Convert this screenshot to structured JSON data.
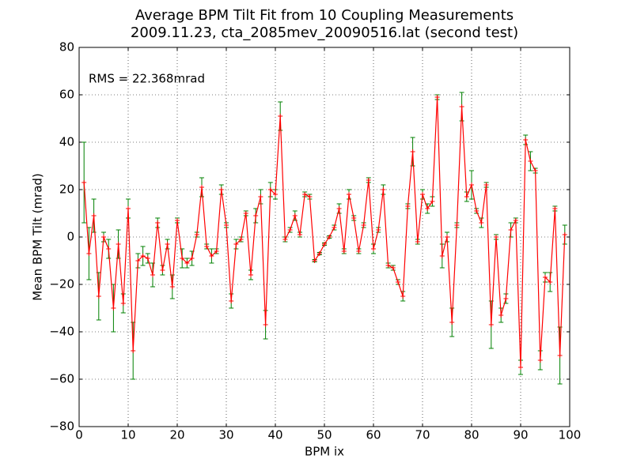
{
  "chart_data": {
    "type": "errorbar",
    "title": "Average BPM Tilt Fit from 10 Coupling Measurements",
    "subtitle": "2009.11.23, cta_2085mev_20090516.lat (second test)",
    "x_label": "BPM ix",
    "y_label": "Mean BPM Tilt (mrad)",
    "annotation": "RMS = 22.368mrad",
    "color": "#ff0000",
    "error_color": "#008000",
    "grid": true,
    "xlim": [
      0,
      100
    ],
    "ylim": [
      -80,
      80
    ],
    "xticks": [
      0,
      10,
      20,
      30,
      40,
      50,
      60,
      70,
      80,
      90,
      100
    ],
    "yticks": [
      {
        "value": -80,
        "label": "−80"
      },
      {
        "value": -60,
        "label": "−60"
      },
      {
        "value": -40,
        "label": "−40"
      },
      {
        "value": -20,
        "label": "−20"
      },
      0,
      20,
      40,
      60,
      80
    ],
    "x": [
      1,
      2,
      3,
      4,
      5,
      6,
      7,
      8,
      9,
      10,
      11,
      12,
      13,
      14,
      15,
      16,
      17,
      18,
      19,
      20,
      21,
      22,
      23,
      24,
      25,
      26,
      27,
      28,
      29,
      30,
      31,
      32,
      33,
      34,
      35,
      36,
      37,
      38,
      39,
      40,
      41,
      42,
      43,
      44,
      45,
      46,
      47,
      48,
      49,
      50,
      51,
      52,
      53,
      54,
      55,
      56,
      57,
      58,
      59,
      60,
      61,
      62,
      63,
      64,
      65,
      66,
      67,
      68,
      69,
      70,
      71,
      72,
      73,
      74,
      75,
      76,
      77,
      78,
      79,
      80,
      81,
      82,
      83,
      84,
      85,
      86,
      87,
      88,
      89,
      90,
      91,
      92,
      93,
      94,
      95,
      96,
      97,
      98,
      99
    ],
    "values": [
      23,
      -7,
      9,
      -25,
      0,
      -5,
      -30,
      -3,
      -28,
      12,
      -48,
      -10,
      -8,
      -9,
      -16,
      6,
      -14,
      -3,
      -21,
      7,
      -9,
      -11,
      -9,
      1,
      21,
      -4,
      -8,
      -6,
      20,
      5,
      -27,
      -3,
      -1,
      10,
      -16,
      9,
      17,
      -37,
      20,
      18,
      51,
      -1,
      3,
      9,
      1,
      18,
      17,
      -10,
      -7,
      -3,
      0,
      4,
      12,
      -6,
      18,
      8,
      -6,
      5,
      24,
      -5,
      3,
      20,
      -12,
      -13,
      -19,
      -25,
      13,
      36,
      -2,
      18,
      12,
      15,
      59,
      -8,
      0,
      -36,
      5,
      55,
      17,
      22,
      11,
      6,
      22,
      -37,
      0,
      -33,
      -26,
      3,
      7,
      -55,
      41,
      32,
      28,
      -52,
      -17,
      -19,
      12,
      -50,
      1
    ],
    "errors": [
      17,
      11,
      7,
      10,
      2,
      4,
      10,
      6,
      4,
      4,
      12,
      3,
      4,
      2,
      5,
      2,
      2,
      2,
      5,
      1,
      4,
      2,
      3,
      1,
      4,
      1,
      3,
      1,
      2,
      1,
      3,
      2,
      1,
      1,
      2,
      3,
      3,
      6,
      3,
      2,
      6,
      1,
      1,
      2,
      1,
      1,
      1,
      0.5,
      0.5,
      0.5,
      0.5,
      1,
      2,
      1,
      2,
      1,
      1,
      1,
      1,
      2,
      1,
      2,
      1,
      1,
      1,
      2,
      1,
      6,
      1,
      2,
      2,
      2,
      1,
      5,
      2,
      6,
      1,
      6,
      2,
      6,
      1,
      2,
      1,
      10,
      1,
      3,
      2,
      3,
      1,
      3,
      2,
      4,
      1,
      4,
      2,
      4,
      1,
      12,
      4
    ]
  }
}
